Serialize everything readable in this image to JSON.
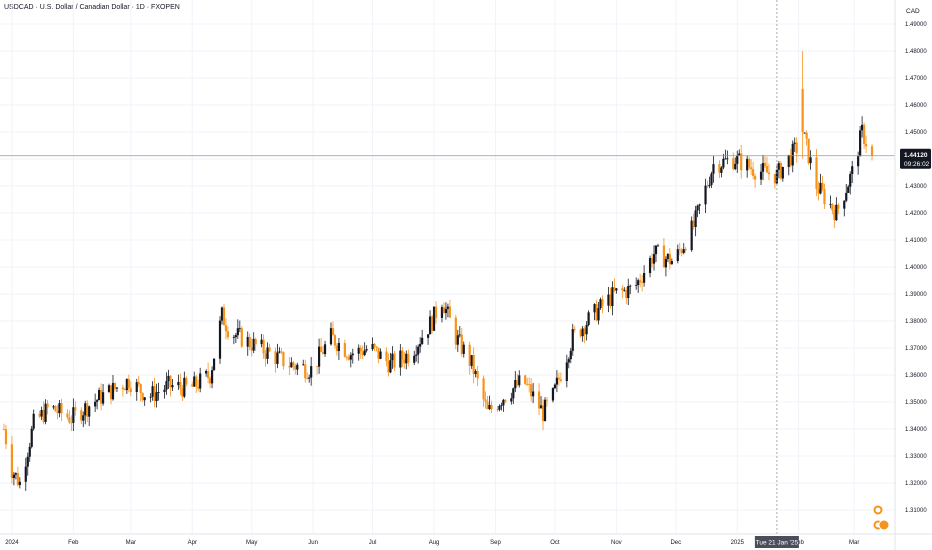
{
  "header": {
    "title": "USDCAD · U.S. Dollar / Canadian Dollar · 1D · FXOPEN"
  },
  "price_axis": {
    "currency": "CAD",
    "last_price": "1.44120",
    "countdown": "09:26:02"
  },
  "crosshair": {
    "date_label": "Tue 21 Jan '25"
  },
  "colors": {
    "up": "#131722",
    "down": "#f7931a",
    "grid": "#f0f3fa",
    "last_price_tag": "#131722",
    "crosshair_tag": "#4a4e5a"
  },
  "chart_data": {
    "type": "candlestick",
    "symbol": "USDCAD",
    "interval": "1D",
    "ylim": [
      1.305,
      1.495
    ],
    "y_ticks": [
      "1.49000",
      "1.48000",
      "1.47000",
      "1.46000",
      "1.45000",
      "1.44000",
      "1.43000",
      "1.42000",
      "1.41000",
      "1.40000",
      "1.39000",
      "1.38000",
      "1.37000",
      "1.36000",
      "1.35000",
      "1.34000",
      "1.33000",
      "1.32000",
      "1.31000"
    ],
    "x_labels": [
      "2024",
      "Feb",
      "Mar",
      "Apr",
      "May",
      "Jun",
      "Jul",
      "Aug",
      "Sep",
      "Oct",
      "Nov",
      "Dec",
      "2025",
      "Feb",
      "Mar"
    ],
    "legend": "none",
    "grid": true,
    "close_path": [
      [
        "2023-12-28",
        1.34
      ],
      [
        "2024-01-01",
        1.325
      ],
      [
        "2024-01-05",
        1.32
      ],
      [
        "2024-01-12",
        1.342
      ],
      [
        "2024-01-20",
        1.348
      ],
      [
        "2024-01-31",
        1.344
      ],
      [
        "2024-02-15",
        1.352
      ],
      [
        "2024-02-29",
        1.358
      ],
      [
        "2024-03-10",
        1.352
      ],
      [
        "2024-03-20",
        1.356
      ],
      [
        "2024-03-31",
        1.355
      ],
      [
        "2024-04-10",
        1.36
      ],
      [
        "2024-04-16",
        1.382
      ],
      [
        "2024-04-20",
        1.376
      ],
      [
        "2024-04-30",
        1.372
      ],
      [
        "2024-05-10",
        1.368
      ],
      [
        "2024-05-20",
        1.364
      ],
      [
        "2024-05-31",
        1.362
      ],
      [
        "2024-06-10",
        1.374
      ],
      [
        "2024-06-20",
        1.368
      ],
      [
        "2024-06-30",
        1.37
      ],
      [
        "2024-07-10",
        1.364
      ],
      [
        "2024-07-20",
        1.368
      ],
      [
        "2024-07-31",
        1.38
      ],
      [
        "2024-08-05",
        1.388
      ],
      [
        "2024-08-12",
        1.374
      ],
      [
        "2024-08-20",
        1.364
      ],
      [
        "2024-08-28",
        1.346
      ],
      [
        "2024-09-05",
        1.352
      ],
      [
        "2024-09-15",
        1.358
      ],
      [
        "2024-09-25",
        1.346
      ],
      [
        "2024-09-30",
        1.352
      ],
      [
        "2024-10-10",
        1.374
      ],
      [
        "2024-10-20",
        1.382
      ],
      [
        "2024-10-31",
        1.39
      ],
      [
        "2024-11-10",
        1.392
      ],
      [
        "2024-11-20",
        1.405
      ],
      [
        "2024-11-30",
        1.402
      ],
      [
        "2024-12-10",
        1.415
      ],
      [
        "2024-12-20",
        1.438
      ],
      [
        "2024-12-31",
        1.44
      ],
      [
        "2025-01-10",
        1.436
      ],
      [
        "2025-01-21",
        1.434
      ],
      [
        "2025-02-01",
        1.445
      ],
      [
        "2025-02-03",
        1.45
      ],
      [
        "2025-02-10",
        1.43
      ],
      [
        "2025-02-20",
        1.42
      ],
      [
        "2025-02-28",
        1.435
      ],
      [
        "2025-03-05",
        1.45
      ],
      [
        "2025-03-10",
        1.4412
      ]
    ],
    "notable_high": {
      "date": "2025-02-03",
      "value": 1.48
    },
    "notable_low": {
      "date": "2024-01-05",
      "value": 1.318
    }
  }
}
